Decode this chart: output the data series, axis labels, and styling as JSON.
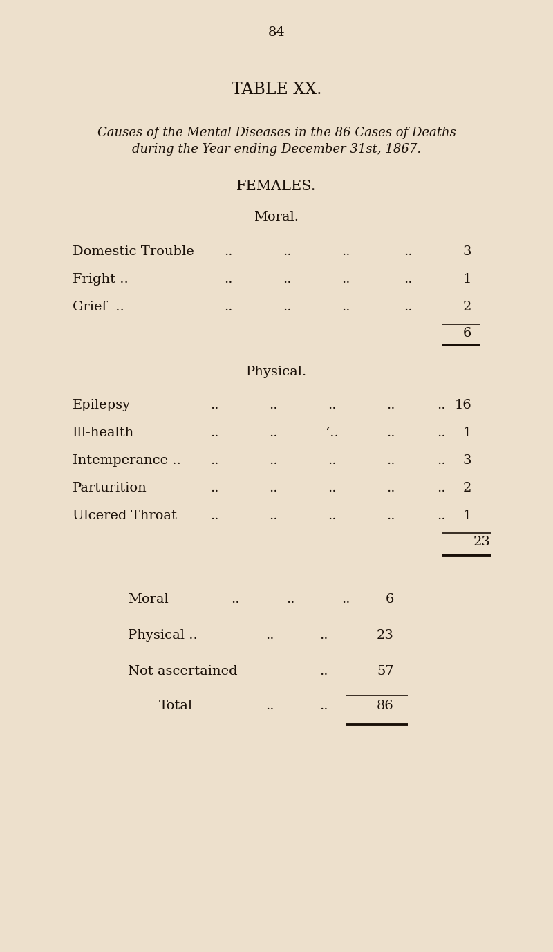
{
  "bg_color": "#ede0cc",
  "text_color": "#1a1008",
  "page_number": "84",
  "title": "TABLE XX.",
  "subtitle_line1": "Causes of the Mental Diseases in the 86 Cases of Deaths",
  "subtitle_line2": "during the Year ending December 31st, 1867.",
  "section_heading": "FEMALES.",
  "moral_heading": "Moral.",
  "physical_heading": "Physical.",
  "moral_items": [
    {
      "label": "Domestic Trouble",
      "dots": "..   ..   ..   ..",
      "value": "3"
    },
    {
      "label": "Fright ..",
      "dots": "..   ..   ..   ..",
      "value": "1"
    },
    {
      "label": "Grief  ..",
      "dots": "..   ..   ..   ..",
      "value": "2"
    }
  ],
  "moral_total": "6",
  "physical_items": [
    {
      "label": "Epilepsy",
      "dots": "..   ..   ..   ..",
      "value": "16"
    },
    {
      "label": "Ill-health",
      "dots": "..   ..   ‘..   ..   ..",
      "value": "1"
    },
    {
      "label": "Intemperance ..",
      "dots": "..   ..   ..   ..",
      "value": "3"
    },
    {
      "label": "Parturition",
      "dots": "..   ..   ..   ..",
      "value": "2"
    },
    {
      "label": "Ulcered Throat",
      "dots": "..   ..   ..   ..",
      "value": "1"
    }
  ],
  "physical_total": "23",
  "summary_items": [
    {
      "label": "Moral",
      "dots": "..   ..   ..",
      "value": "6"
    },
    {
      "label": "Physical ..",
      "dots": "..   ..",
      "value": "23"
    },
    {
      "label": "Not ascertained",
      "dots": "..",
      "value": "57"
    }
  ],
  "total_label": "Total",
  "total_dots": "..   ..",
  "total_value": "86"
}
